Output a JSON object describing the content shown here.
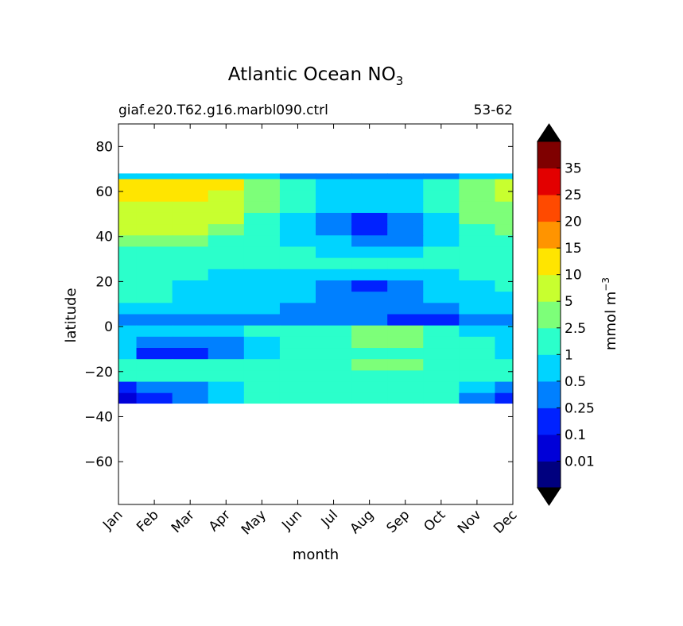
{
  "chart_data": {
    "type": "heatmap",
    "title": "Atlantic Ocean NO",
    "title_subscript": "3",
    "subtitle_left": "giaf.e20.T62.g16.marbl090.ctrl",
    "subtitle_right": "53-62",
    "xlabel": "month",
    "ylabel": "latitude",
    "x_ticks": [
      "Jan",
      "Feb",
      "Mar",
      "Apr",
      "May",
      "Jun",
      "Jul",
      "Aug",
      "Sep",
      "Oct",
      "Nov",
      "Dec"
    ],
    "y_ticks": [
      80,
      60,
      40,
      20,
      0,
      -20,
      -40,
      -60
    ],
    "y_tick_labels": [
      "80",
      "60",
      "40",
      "20",
      "0",
      "−20",
      "−40",
      "−60"
    ],
    "ylim": [
      -79,
      90
    ],
    "data_lat_range": [
      -34,
      68
    ],
    "colorbar": {
      "label": "mmol m",
      "label_superscript": "−3",
      "levels": [
        "0.01",
        "0.1",
        "0.25",
        "0.5",
        "1",
        "2.5",
        "5",
        "10",
        "15",
        "20",
        "25",
        "35"
      ],
      "colors": [
        "#00007f",
        "#0000d8",
        "#0022ff",
        "#0080ff",
        "#00d4ff",
        "#2bffcb",
        "#7dff79",
        "#c8ff2f",
        "#ffe500",
        "#ff9400",
        "#ff4a00",
        "#e30000",
        "#7f0000"
      ],
      "extend_under": "#000000",
      "extend_over": "#000000"
    },
    "latitudes": [
      68,
      63,
      58,
      53,
      48,
      43,
      38,
      33,
      28,
      23,
      18,
      13,
      8,
      3,
      -2,
      -7,
      -12,
      -17,
      -22,
      -27,
      -32
    ],
    "values": [
      [
        4,
        4,
        4,
        4,
        4,
        3,
        3,
        3,
        3,
        3,
        4,
        4
      ],
      [
        8,
        8,
        8,
        8,
        6,
        5,
        4,
        4,
        4,
        5,
        6,
        7
      ],
      [
        8,
        8,
        8,
        7,
        6,
        5,
        4,
        4,
        4,
        5,
        6,
        7
      ],
      [
        7,
        7,
        7,
        7,
        6,
        5,
        4,
        4,
        4,
        5,
        6,
        6
      ],
      [
        7,
        7,
        7,
        7,
        5,
        4,
        3,
        2,
        3,
        4,
        6,
        6
      ],
      [
        7,
        7,
        7,
        6,
        5,
        4,
        3,
        2,
        3,
        4,
        5,
        6
      ],
      [
        6,
        6,
        6,
        5,
        5,
        4,
        4,
        3,
        3,
        4,
        5,
        5
      ],
      [
        5,
        5,
        5,
        5,
        5,
        5,
        4,
        4,
        4,
        5,
        5,
        5
      ],
      [
        5,
        5,
        5,
        5,
        5,
        5,
        5,
        5,
        5,
        5,
        5,
        5
      ],
      [
        5,
        5,
        5,
        4,
        4,
        4,
        4,
        4,
        4,
        4,
        5,
        5
      ],
      [
        5,
        5,
        4,
        4,
        4,
        4,
        3,
        2,
        3,
        4,
        4,
        5
      ],
      [
        5,
        5,
        4,
        4,
        4,
        4,
        3,
        3,
        3,
        4,
        4,
        4
      ],
      [
        4,
        4,
        4,
        4,
        4,
        3,
        3,
        3,
        3,
        3,
        4,
        4
      ],
      [
        3,
        3,
        3,
        3,
        3,
        3,
        3,
        3,
        2,
        2,
        3,
        3
      ],
      [
        4,
        4,
        4,
        4,
        5,
        5,
        5,
        6,
        6,
        5,
        4,
        4
      ],
      [
        4,
        3,
        3,
        3,
        4,
        5,
        5,
        6,
        6,
        5,
        5,
        4
      ],
      [
        4,
        2,
        2,
        3,
        4,
        5,
        5,
        5,
        5,
        5,
        5,
        4
      ],
      [
        5,
        5,
        5,
        5,
        5,
        5,
        5,
        6,
        6,
        5,
        5,
        5
      ],
      [
        5,
        5,
        5,
        5,
        5,
        5,
        5,
        5,
        5,
        5,
        5,
        5
      ],
      [
        2,
        3,
        3,
        4,
        5,
        5,
        5,
        5,
        5,
        5,
        4,
        3
      ],
      [
        1,
        2,
        3,
        4,
        5,
        5,
        5,
        5,
        5,
        5,
        3,
        2
      ]
    ]
  }
}
